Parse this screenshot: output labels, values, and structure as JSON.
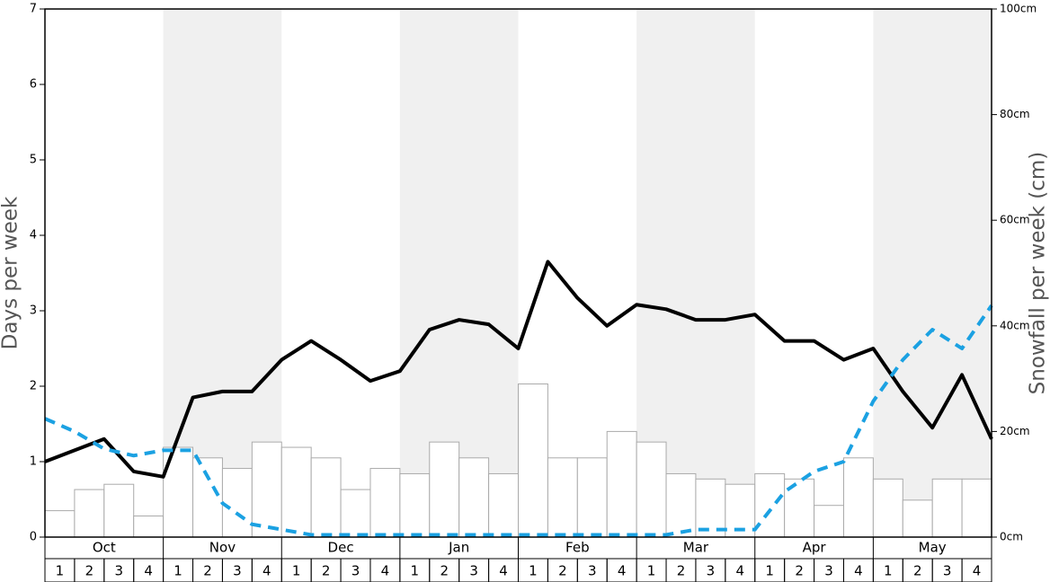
{
  "chart_data": {
    "type": "bar",
    "y_label": "Days per week",
    "y2_label": "Snowfall per week (cm)",
    "months": [
      "Oct",
      "Nov",
      "Dec",
      "Jan",
      "Feb",
      "Mar",
      "Apr",
      "May"
    ],
    "categories": [
      "1",
      "2",
      "3",
      "4",
      "1",
      "2",
      "3",
      "4",
      "1",
      "2",
      "3",
      "4",
      "1",
      "2",
      "3",
      "4",
      "1",
      "2",
      "3",
      "4",
      "1",
      "2",
      "3",
      "4",
      "1",
      "2",
      "3",
      "4",
      "1",
      "2",
      "3",
      "4"
    ],
    "x": [
      0,
      1,
      2,
      3,
      4,
      5,
      6,
      7,
      8,
      9,
      10,
      11,
      12,
      13,
      14,
      15,
      16,
      17,
      18,
      19,
      20,
      21,
      22,
      23,
      24,
      25,
      26,
      27,
      28,
      29,
      30,
      31,
      32
    ],
    "xlim": [
      0,
      32
    ],
    "ylim": [
      0,
      7
    ],
    "yticks": [
      0,
      1,
      2,
      3,
      4,
      5,
      6,
      7
    ],
    "y2lim": [
      0,
      100
    ],
    "y2ticks": [
      {
        "value": 0,
        "label": "0cm"
      },
      {
        "value": 20,
        "label": "20cm"
      },
      {
        "value": 40,
        "label": "40cm"
      },
      {
        "value": 60,
        "label": "60cm"
      },
      {
        "value": 80,
        "label": "80cm"
      },
      {
        "value": 100,
        "label": "100cm"
      }
    ],
    "series": [
      {
        "type": "bar",
        "axis": "y2",
        "color": "#ffffff",
        "values": [
          5,
          9,
          10,
          4,
          17,
          15,
          13,
          18,
          17,
          15,
          9,
          13,
          12,
          18,
          15,
          12,
          29,
          15,
          15,
          20,
          18,
          12,
          11,
          10,
          12,
          11,
          6,
          15,
          11,
          7,
          11,
          11
        ]
      },
      {
        "type": "line",
        "color": "#000000",
        "values": [
          1.0,
          1.15,
          1.3,
          0.87,
          0.8,
          1.85,
          1.93,
          1.93,
          2.35,
          2.6,
          2.35,
          2.07,
          2.2,
          2.75,
          2.88,
          2.82,
          2.5,
          3.65,
          3.17,
          2.8,
          3.08,
          3.02,
          2.88,
          2.88,
          2.95,
          2.6,
          2.6,
          2.35,
          2.5,
          1.93,
          1.45,
          2.15,
          1.3
        ]
      },
      {
        "type": "line",
        "color": "#1ba1e2",
        "dashed": true,
        "values": [
          1.57,
          1.4,
          1.17,
          1.08,
          1.15,
          1.15,
          0.45,
          0.17,
          0.1,
          0.03,
          0.03,
          0.03,
          0.03,
          0.03,
          0.03,
          0.03,
          0.03,
          0.03,
          0.03,
          0.03,
          0.03,
          0.03,
          0.1,
          0.1,
          0.1,
          0.6,
          0.87,
          1.0,
          1.8,
          2.35,
          2.75,
          2.5,
          3.07
        ]
      }
    ]
  }
}
